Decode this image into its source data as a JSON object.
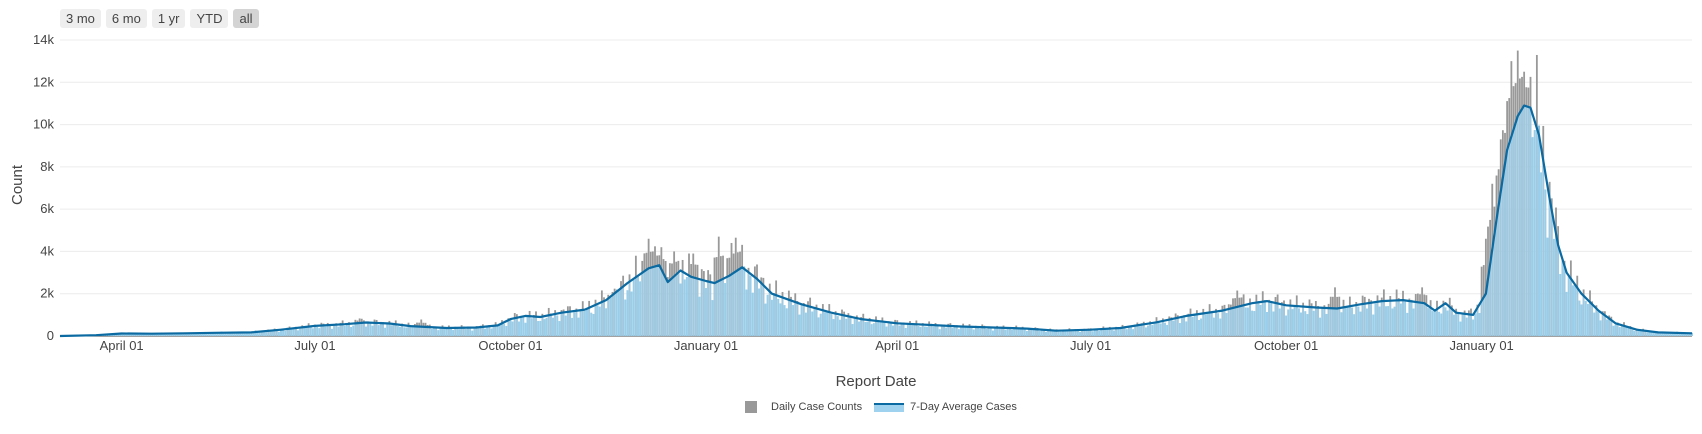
{
  "range_selector": {
    "buttons": [
      {
        "label": "3 mo",
        "active": false
      },
      {
        "label": "6 mo",
        "active": false
      },
      {
        "label": "1 yr",
        "active": false
      },
      {
        "label": "YTD",
        "active": false
      },
      {
        "label": "all",
        "active": true
      }
    ]
  },
  "legend": {
    "bar_label": "Daily Case Counts",
    "line_label": "7-Day Average Cases"
  },
  "colors": {
    "daily_bar": "#999999",
    "average_fill": "#9ed2ef",
    "average_line": "#0a6aa1",
    "grid": "#ececec"
  },
  "chart_data": {
    "type": "bar",
    "xlabel": "Report Date",
    "ylabel": "Count",
    "ylim": [
      0,
      14000
    ],
    "xlim": [
      "2020-03-03",
      "2022-04-10"
    ],
    "grid": true,
    "legend_position": "bottom-center",
    "y_ticks": [
      {
        "value": 0,
        "label": "0"
      },
      {
        "value": 2000,
        "label": "2k"
      },
      {
        "value": 4000,
        "label": "4k"
      },
      {
        "value": 6000,
        "label": "6k"
      },
      {
        "value": 8000,
        "label": "8k"
      },
      {
        "value": 10000,
        "label": "10k"
      },
      {
        "value": 12000,
        "label": "12k"
      },
      {
        "value": 14000,
        "label": "14k"
      }
    ],
    "x_ticks": [
      {
        "date": "2020-04-01",
        "label": "April 01"
      },
      {
        "date": "2020-07-01",
        "label": "July 01"
      },
      {
        "date": "2020-10-01",
        "label": "October 01"
      },
      {
        "date": "2021-01-01",
        "label": "January 01"
      },
      {
        "date": "2021-04-01",
        "label": "April 01"
      },
      {
        "date": "2021-07-01",
        "label": "July 01"
      },
      {
        "date": "2021-10-01",
        "label": "October 01"
      },
      {
        "date": "2022-01-01",
        "label": "January 01"
      }
    ],
    "series": [
      {
        "name": "7-Day Average Cases",
        "type": "line",
        "points": [
          [
            "2020-03-03",
            0
          ],
          [
            "2020-03-20",
            40
          ],
          [
            "2020-04-01",
            120
          ],
          [
            "2020-04-15",
            110
          ],
          [
            "2020-05-01",
            130
          ],
          [
            "2020-05-15",
            150
          ],
          [
            "2020-06-01",
            170
          ],
          [
            "2020-06-15",
            300
          ],
          [
            "2020-07-01",
            480
          ],
          [
            "2020-07-15",
            560
          ],
          [
            "2020-07-25",
            640
          ],
          [
            "2020-08-05",
            590
          ],
          [
            "2020-08-15",
            470
          ],
          [
            "2020-09-01",
            380
          ],
          [
            "2020-09-15",
            400
          ],
          [
            "2020-09-25",
            500
          ],
          [
            "2020-10-01",
            800
          ],
          [
            "2020-10-08",
            950
          ],
          [
            "2020-10-15",
            900
          ],
          [
            "2020-10-25",
            1100
          ],
          [
            "2020-11-05",
            1250
          ],
          [
            "2020-11-15",
            1700
          ],
          [
            "2020-11-25",
            2500
          ],
          [
            "2020-12-05",
            3200
          ],
          [
            "2020-12-10",
            3350
          ],
          [
            "2020-12-14",
            2550
          ],
          [
            "2020-12-20",
            3100
          ],
          [
            "2020-12-25",
            2800
          ],
          [
            "2021-01-01",
            2600
          ],
          [
            "2021-01-05",
            2500
          ],
          [
            "2021-01-12",
            2850
          ],
          [
            "2021-01-18",
            3250
          ],
          [
            "2021-01-25",
            2700
          ],
          [
            "2021-02-01",
            2000
          ],
          [
            "2021-02-15",
            1500
          ],
          [
            "2021-03-01",
            1100
          ],
          [
            "2021-03-15",
            800
          ],
          [
            "2021-04-01",
            600
          ],
          [
            "2021-05-01",
            450
          ],
          [
            "2021-06-01",
            350
          ],
          [
            "2021-06-15",
            250
          ],
          [
            "2021-07-01",
            300
          ],
          [
            "2021-07-15",
            380
          ],
          [
            "2021-08-01",
            650
          ],
          [
            "2021-08-15",
            950
          ],
          [
            "2021-09-01",
            1200
          ],
          [
            "2021-09-15",
            1550
          ],
          [
            "2021-09-22",
            1650
          ],
          [
            "2021-10-01",
            1450
          ],
          [
            "2021-10-15",
            1350
          ],
          [
            "2021-10-25",
            1300
          ],
          [
            "2021-11-05",
            1500
          ],
          [
            "2021-11-15",
            1650
          ],
          [
            "2021-11-25",
            1700
          ],
          [
            "2021-12-05",
            1550
          ],
          [
            "2021-12-10",
            1200
          ],
          [
            "2021-12-15",
            1550
          ],
          [
            "2021-12-20",
            1100
          ],
          [
            "2021-12-28",
            1000
          ],
          [
            "2022-01-03",
            2000
          ],
          [
            "2022-01-08",
            5500
          ],
          [
            "2022-01-13",
            8800
          ],
          [
            "2022-01-18",
            10400
          ],
          [
            "2022-01-21",
            10900
          ],
          [
            "2022-01-24",
            10800
          ],
          [
            "2022-01-28",
            9500
          ],
          [
            "2022-02-02",
            6500
          ],
          [
            "2022-02-06",
            4300
          ],
          [
            "2022-02-10",
            3000
          ],
          [
            "2022-02-17",
            2000
          ],
          [
            "2022-02-25",
            1200
          ],
          [
            "2022-03-05",
            600
          ],
          [
            "2022-03-15",
            300
          ],
          [
            "2022-03-25",
            170
          ],
          [
            "2022-04-10",
            130
          ]
        ]
      },
      {
        "name": "Daily Case Counts",
        "type": "bar",
        "peaks": [
          [
            "2020-07-22",
            830
          ],
          [
            "2020-08-20",
            780
          ],
          [
            "2020-11-20",
            2200
          ],
          [
            "2020-12-05",
            4600
          ],
          [
            "2020-12-11",
            4200
          ],
          [
            "2020-12-17",
            4000
          ],
          [
            "2020-12-26",
            3900
          ],
          [
            "2021-01-07",
            4700
          ],
          [
            "2021-01-13",
            4400
          ],
          [
            "2021-01-15",
            4650
          ],
          [
            "2021-09-08",
            2150
          ],
          [
            "2021-10-24",
            2300
          ],
          [
            "2021-12-04",
            2300
          ],
          [
            "2022-01-03",
            4600
          ],
          [
            "2022-01-06",
            7200
          ],
          [
            "2022-01-10",
            9300
          ],
          [
            "2022-01-15",
            13000
          ],
          [
            "2022-01-18",
            13500
          ],
          [
            "2022-01-21",
            12500
          ],
          [
            "2022-01-25",
            9400
          ]
        ]
      }
    ]
  }
}
